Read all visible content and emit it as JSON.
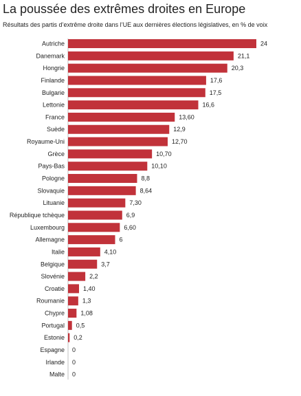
{
  "chart_data": {
    "type": "bar",
    "orientation": "horizontal",
    "title": "La poussée des extrêmes droites en Europe",
    "subtitle": "Résultats des partis d’extrême droite dans l’UE aux dernières élections législatives, en % de voix",
    "xlabel": "",
    "ylabel": "",
    "grid": false,
    "legend": "none",
    "xlim": [
      0,
      24
    ],
    "bar_color": "#c1323a",
    "categories": [
      "Autriche",
      "Danemark",
      "Hongrie",
      "Finlande",
      "Bulgarie",
      "Lettonie",
      "France",
      "Suède",
      "Royaume-Uni",
      "Grèce",
      "Pays-Bas",
      "Pologne",
      "Slovaquie",
      "Lituanie",
      "République tchèque",
      "Luxembourg",
      "Allemagne",
      "Italie",
      "Belgique",
      "Slovénie",
      "Croatie",
      "Roumanie",
      "Chypre",
      "Portugal",
      "Estonie",
      "Espagne",
      "Irlande",
      "Malte"
    ],
    "values": [
      24,
      21.1,
      20.3,
      17.6,
      17.5,
      16.6,
      13.6,
      12.9,
      12.7,
      10.7,
      10.1,
      8.8,
      8.64,
      7.3,
      6.9,
      6.6,
      6,
      4.1,
      3.7,
      2.2,
      1.4,
      1.3,
      1.08,
      0.5,
      0.2,
      0,
      0,
      0
    ],
    "value_labels": [
      "24",
      "21,1",
      "20,3",
      "17,6",
      "17,5",
      "16,6",
      "13,60",
      "12,9",
      "12,70",
      "10,70",
      "10,10",
      "8,8",
      "8,64",
      "7,30",
      "6,9",
      "6,60",
      "6",
      "4,10",
      "3,7",
      "2,2",
      "1,40",
      "1,3",
      "1,08",
      "0,5",
      "0,2",
      "0",
      "0",
      "0"
    ]
  }
}
